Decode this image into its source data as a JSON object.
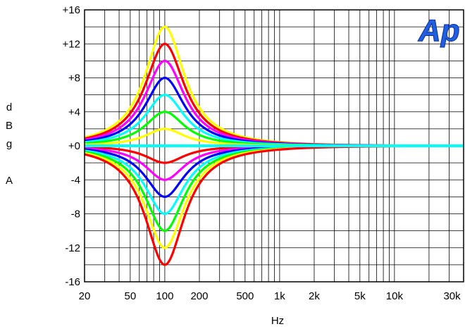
{
  "chart_data": {
    "type": "line",
    "xlabel": "Hz",
    "ylabel_chars": [
      "d",
      "B",
      "g",
      "",
      "A"
    ],
    "x_scale": "log",
    "xlim": [
      20,
      40000
    ],
    "ylim": [
      -16,
      16
    ],
    "grid": true,
    "logo": "Ap",
    "x_ticks": [
      {
        "value": 20,
        "label": "20"
      },
      {
        "value": 50,
        "label": "50"
      },
      {
        "value": 100,
        "label": "100"
      },
      {
        "value": 200,
        "label": "200"
      },
      {
        "value": 500,
        "label": "500"
      },
      {
        "value": 1000,
        "label": "1k"
      },
      {
        "value": 2000,
        "label": "2k"
      },
      {
        "value": 5000,
        "label": "5k"
      },
      {
        "value": 10000,
        "label": "10k"
      },
      {
        "value": 30000,
        "label": "30k"
      }
    ],
    "y_ticks": [
      {
        "value": 16,
        "label": "+16"
      },
      {
        "value": 12,
        "label": "+12"
      },
      {
        "value": 8,
        "label": "+8"
      },
      {
        "value": 4,
        "label": "+4"
      },
      {
        "value": 0,
        "label": "+0"
      },
      {
        "value": -4,
        "label": "-4"
      },
      {
        "value": -8,
        "label": "-8"
      },
      {
        "value": -12,
        "label": "-12"
      },
      {
        "value": -16,
        "label": "-16"
      }
    ],
    "center_frequency_hz": 100,
    "bandwidth_octaves": 1.4,
    "series": [
      {
        "gain_db": 14,
        "color": "#ffff00"
      },
      {
        "gain_db": 12,
        "color": "#ff0000"
      },
      {
        "gain_db": 10,
        "color": "#ff00ff"
      },
      {
        "gain_db": 8,
        "color": "#0000ff"
      },
      {
        "gain_db": 6,
        "color": "#00ffff"
      },
      {
        "gain_db": 4,
        "color": "#00ff00"
      },
      {
        "gain_db": 2,
        "color": "#ffff00"
      },
      {
        "gain_db": 0,
        "color": "#ff0000"
      },
      {
        "gain_db": -2,
        "color": "#ff0000"
      },
      {
        "gain_db": -4,
        "color": "#ff00ff"
      },
      {
        "gain_db": -6,
        "color": "#0000ff"
      },
      {
        "gain_db": -8,
        "color": "#00ffff"
      },
      {
        "gain_db": -10,
        "color": "#00ff00"
      },
      {
        "gain_db": -12,
        "color": "#ffff00"
      },
      {
        "gain_db": -14,
        "color": "#ff0000"
      },
      {
        "gain_db": 0,
        "color": "#00ffff"
      }
    ]
  }
}
